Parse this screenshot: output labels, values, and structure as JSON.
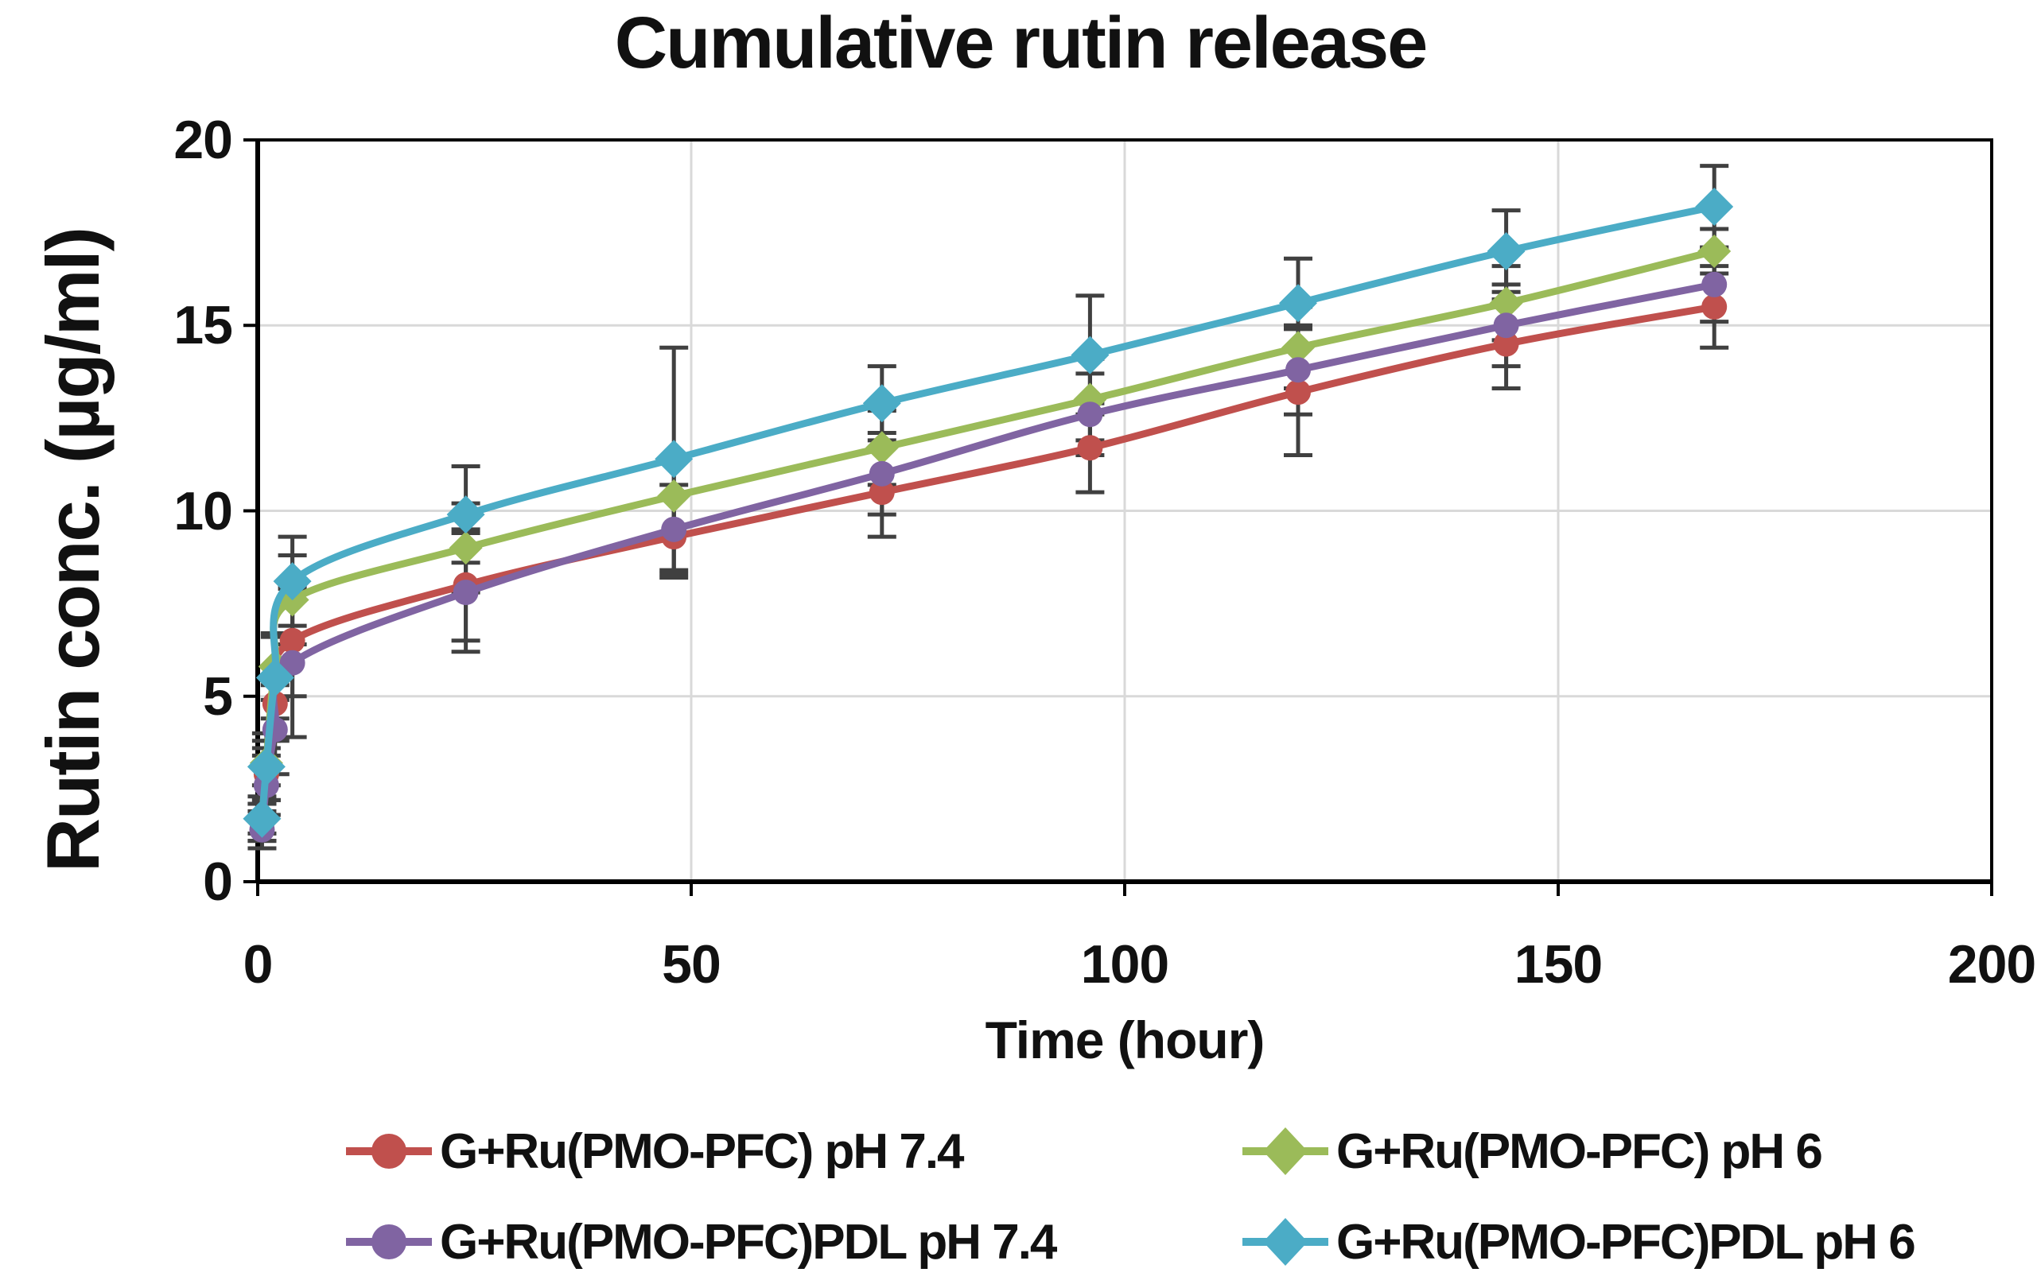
{
  "title": "Cumulative rutin release",
  "chart_data": {
    "type": "line",
    "title": "Cumulative rutin release",
    "xlabel": "Time (hour)",
    "ylabel": "Rutin conc. (µg/ml)",
    "xlim": [
      0,
      200
    ],
    "ylim": [
      0,
      20
    ],
    "xticks": [
      0,
      50,
      100,
      150,
      200
    ],
    "yticks": [
      0,
      5,
      10,
      15,
      20
    ],
    "grid": true,
    "legend_position": "bottom",
    "error_bars": true,
    "x": [
      0.5,
      1,
      2,
      4,
      24,
      48,
      72,
      96,
      120,
      144,
      168
    ],
    "series": [
      {
        "name": "G+Ru(PMO-PFC) pH 7.4",
        "color": "#C0504D",
        "marker": "circle",
        "marker_size": 16,
        "values": [
          1.6,
          2.9,
          4.8,
          6.5,
          8.0,
          9.3,
          10.5,
          11.7,
          13.2,
          14.5,
          15.5
        ],
        "errors": [
          0.5,
          0.7,
          1.0,
          1.5,
          1.5,
          1.1,
          1.2,
          1.2,
          1.7,
          1.2,
          1.1
        ]
      },
      {
        "name": "G+Ru(PMO-PFC) pH 6",
        "color": "#9BBB59",
        "marker": "diamond",
        "marker_size": 21,
        "values": [
          1.7,
          3.2,
          5.8,
          7.6,
          9.0,
          10.4,
          11.7,
          13.0,
          14.4,
          15.6,
          17.0
        ],
        "errors": [
          0.4,
          0.6,
          0.9,
          1.2,
          1.2,
          1.0,
          1.0,
          1.1,
          1.1,
          1.0,
          0.6
        ]
      },
      {
        "name": "G+Ru(PMO-PFC)PDL pH 7.4",
        "color": "#8064A2",
        "marker": "circle",
        "marker_size": 16,
        "values": [
          1.4,
          2.6,
          4.1,
          5.9,
          7.8,
          9.5,
          11.0,
          12.6,
          13.8,
          15.0,
          16.1
        ],
        "errors": [
          0.5,
          0.8,
          1.2,
          2.0,
          1.6,
          1.2,
          1.1,
          1.1,
          1.2,
          1.1,
          1.0
        ]
      },
      {
        "name": "G+Ru(PMO-PFC)PDL pH 6",
        "color": "#4BACC6",
        "marker": "diamond",
        "marker_size": 24,
        "values": [
          1.7,
          3.1,
          5.5,
          8.1,
          9.9,
          11.4,
          12.9,
          14.2,
          15.6,
          17.0,
          18.2
        ],
        "errors": [
          0.6,
          0.9,
          1.1,
          1.2,
          1.3,
          3.0,
          1.0,
          1.6,
          1.2,
          1.1,
          1.1
        ]
      }
    ]
  },
  "colors": {
    "background": "#FFFFFF",
    "text": "#111111",
    "axis": "#000000",
    "gridline": "#D9D9D9",
    "error_bar": "#404040"
  }
}
